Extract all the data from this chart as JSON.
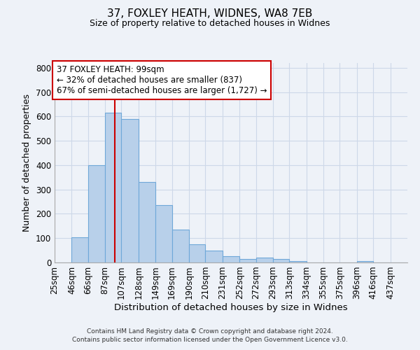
{
  "title": "37, FOXLEY HEATH, WIDNES, WA8 7EB",
  "subtitle": "Size of property relative to detached houses in Widnes",
  "xlabel": "Distribution of detached houses by size in Widnes",
  "ylabel": "Number of detached properties",
  "bar_labels": [
    "25sqm",
    "46sqm",
    "66sqm",
    "87sqm",
    "107sqm",
    "128sqm",
    "149sqm",
    "169sqm",
    "190sqm",
    "210sqm",
    "231sqm",
    "252sqm",
    "272sqm",
    "293sqm",
    "313sqm",
    "334sqm",
    "355sqm",
    "375sqm",
    "396sqm",
    "416sqm",
    "437sqm"
  ],
  "bar_values": [
    0,
    105,
    400,
    615,
    590,
    330,
    235,
    135,
    75,
    50,
    25,
    15,
    20,
    15,
    5,
    0,
    0,
    0,
    7,
    0,
    0
  ],
  "bar_color": "#b8d0ea",
  "bar_edgecolor": "#6fa8d8",
  "vline_x": 99,
  "annotation_title": "37 FOXLEY HEATH: 99sqm",
  "annotation_line1": "← 32% of detached houses are smaller (837)",
  "annotation_line2": "67% of semi-detached houses are larger (1,727) →",
  "annotation_box_color": "#ffffff",
  "annotation_box_edgecolor": "#cc0000",
  "vline_color": "#cc0000",
  "ylim": [
    0,
    820
  ],
  "bin_edges": [
    25,
    46,
    66,
    87,
    107,
    128,
    149,
    169,
    190,
    210,
    231,
    252,
    272,
    293,
    313,
    334,
    355,
    375,
    396,
    416,
    437,
    458
  ],
  "grid_color": "#cdd8e8",
  "background_color": "#eef2f8",
  "footer1": "Contains HM Land Registry data © Crown copyright and database right 2024.",
  "footer2": "Contains public sector information licensed under the Open Government Licence v3.0."
}
